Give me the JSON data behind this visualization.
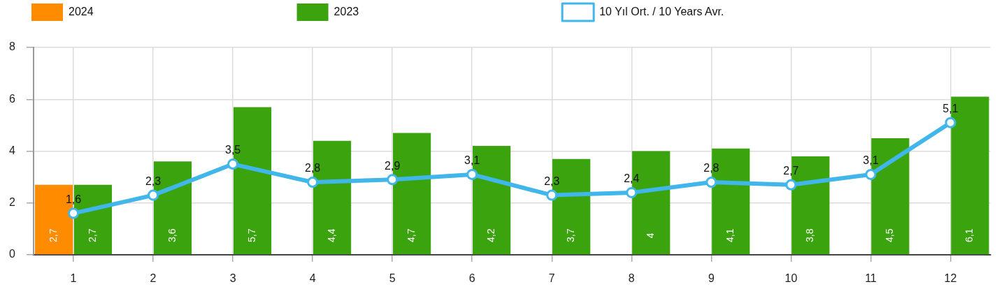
{
  "chart_data": {
    "type": "bar",
    "categories": [
      "1",
      "2",
      "3",
      "4",
      "5",
      "6",
      "7",
      "8",
      "9",
      "10",
      "11",
      "12"
    ],
    "series": [
      {
        "name": "2024",
        "color": "#ff8c00",
        "values": [
          2.7,
          0,
          0,
          0,
          0,
          0,
          0,
          0,
          0,
          0,
          0,
          0
        ],
        "value_labels": [
          "2,7",
          null,
          null,
          null,
          null,
          null,
          null,
          null,
          null,
          null,
          null,
          null
        ]
      },
      {
        "name": "2023",
        "color": "#3aa30e",
        "values": [
          2.7,
          3.6,
          5.7,
          4.4,
          4.7,
          4.2,
          3.7,
          4,
          4.1,
          3.8,
          4.5,
          6.1
        ],
        "value_labels": [
          "2,7",
          "3,6",
          "5,7",
          "4,4",
          "4,7",
          "4,2",
          "3,7",
          "4",
          "4,1",
          "3,8",
          "4,5",
          "6,1"
        ]
      },
      {
        "name": "10 Yıl Ort. / 10 Years Avr.",
        "type": "line",
        "color": "#40b6ea",
        "values": [
          1.6,
          2.3,
          3.5,
          2.8,
          2.9,
          3.1,
          2.3,
          2.4,
          2.8,
          2.7,
          3.1,
          5.1
        ],
        "value_labels": [
          "1,6",
          "2,3",
          "3,5",
          "2,8",
          "2,9",
          "3,1",
          "2,3",
          "2,4",
          "2,8",
          "2,7",
          "3,1",
          "5,1"
        ]
      }
    ],
    "ylim": [
      0,
      8
    ],
    "yticks": [
      0,
      2,
      4,
      6,
      8
    ],
    "grid": true,
    "legend": "top left",
    "marker": "circle"
  }
}
